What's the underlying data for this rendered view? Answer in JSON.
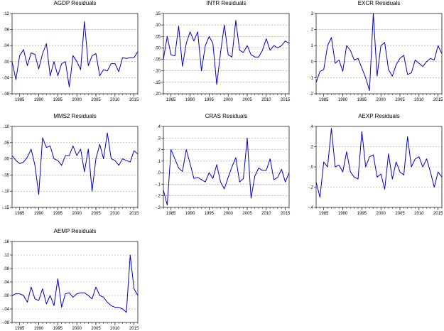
{
  "chart_data": [
    {
      "type": "line",
      "title": "AGDP Residuals",
      "x": [
        1983,
        1984,
        1985,
        1986,
        1987,
        1988,
        1989,
        1990,
        1991,
        1992,
        1993,
        1994,
        1995,
        1996,
        1997,
        1998,
        1999,
        2000,
        2001,
        2002,
        2003,
        2004,
        2005,
        2006,
        2007,
        2008,
        2009,
        2010,
        2011,
        2012,
        2013,
        2014,
        2015,
        2016
      ],
      "values": [
        0.0,
        -0.045,
        0.015,
        0.03,
        -0.01,
        0.022,
        0.018,
        -0.018,
        0.02,
        0.045,
        -0.035,
        0.0,
        -0.035,
        -0.005,
        0.0,
        -0.063,
        0.015,
        0.0,
        -0.02,
        0.1,
        -0.01,
        0.015,
        0.02,
        -0.035,
        -0.02,
        -0.023,
        -0.005,
        -0.005,
        -0.025,
        0.01,
        0.008,
        0.01,
        0.01,
        0.025
      ],
      "ylim": [
        -0.08,
        0.12
      ],
      "yticks": [
        ".12",
        ".08",
        ".04",
        ".00",
        "-.04",
        "-.08"
      ],
      "xticks": [
        "1985",
        "1990",
        "1995",
        "2000",
        "2005",
        "2010",
        "2015"
      ],
      "grid": true,
      "color": "#0000cc"
    },
    {
      "type": "line",
      "title": "INTR Residuals",
      "x": [
        1983,
        1984,
        1985,
        1986,
        1987,
        1988,
        1989,
        1990,
        1991,
        1992,
        1993,
        1994,
        1995,
        1996,
        1997,
        1998,
        1999,
        2000,
        2001,
        2002,
        2003,
        2004,
        2005,
        2006,
        2007,
        2008,
        2009,
        2010,
        2011,
        2012,
        2013,
        2014,
        2015,
        2016
      ],
      "values": [
        -0.05,
        0.05,
        -0.03,
        -0.035,
        0.095,
        -0.08,
        0.02,
        0.07,
        0.03,
        0.07,
        -0.1,
        0.01,
        0.05,
        0.02,
        -0.16,
        -0.02,
        0.1,
        -0.03,
        -0.04,
        0.12,
        -0.01,
        -0.02,
        0.01,
        -0.03,
        -0.04,
        -0.04,
        -0.01,
        0.04,
        -0.01,
        0.01,
        0.0,
        0.01,
        0.03,
        0.02
      ],
      "ylim": [
        -0.2,
        0.15
      ],
      "yticks": [
        ".15",
        ".10",
        ".05",
        ".00",
        "-.05",
        "-.10",
        "-.15",
        "-.20"
      ],
      "xticks": [
        "1985",
        "1990",
        "1995",
        "2000",
        "2005",
        "2010",
        "2015"
      ],
      "grid": true,
      "color": "#0000cc"
    },
    {
      "type": "line",
      "title": "EXCR Residuals",
      "x": [
        1983,
        1984,
        1985,
        1986,
        1987,
        1988,
        1989,
        1990,
        1991,
        1992,
        1993,
        1994,
        1995,
        1996,
        1997,
        1998,
        1999,
        2000,
        2001,
        2002,
        2003,
        2004,
        2005,
        2006,
        2007,
        2008,
        2009,
        2010,
        2011,
        2012,
        2013,
        2014,
        2015,
        2016
      ],
      "values": [
        -1.3,
        -0.6,
        -0.5,
        1.0,
        1.5,
        -0.1,
        0.1,
        -0.6,
        1.0,
        0.7,
        0.1,
        0.2,
        -0.4,
        -1.0,
        -1.8,
        3.0,
        -0.9,
        1.0,
        1.2,
        -0.5,
        -0.9,
        -0.2,
        0.2,
        0.4,
        -0.8,
        -0.7,
        0.1,
        -0.1,
        -0.3,
        0.0,
        0.2,
        0.1,
        1.0,
        0.5
      ],
      "ylim": [
        -2,
        3
      ],
      "yticks": [
        "3",
        "2",
        "1",
        "0",
        "-1",
        "-2"
      ],
      "xticks": [
        "1985",
        "1990",
        "1995",
        "2000",
        "2005",
        "2010",
        "2015"
      ],
      "grid": true,
      "color": "#0000cc"
    },
    {
      "type": "line",
      "title": "MMS2 Residuals",
      "x": [
        1983,
        1984,
        1985,
        1986,
        1987,
        1988,
        1989,
        1990,
        1991,
        1992,
        1993,
        1994,
        1995,
        1996,
        1997,
        1998,
        1999,
        2000,
        2001,
        2002,
        2003,
        2004,
        2005,
        2006,
        2007,
        2008,
        2009,
        2010,
        2011,
        2012,
        2013,
        2014,
        2015,
        2016
      ],
      "values": [
        0.01,
        -0.005,
        -0.015,
        -0.01,
        0.005,
        0.03,
        -0.02,
        -0.11,
        0.065,
        0.035,
        0.04,
        0.0,
        -0.005,
        -0.02,
        0.01,
        0.01,
        0.04,
        0.01,
        0.03,
        -0.04,
        0.03,
        -0.1,
        0.0,
        0.045,
        0.0,
        0.08,
        0.0,
        -0.005,
        -0.02,
        0.0,
        -0.005,
        -0.01,
        0.025,
        0.015
      ],
      "ylim": [
        -0.15,
        0.1
      ],
      "yticks": [
        ".10",
        ".05",
        ".00",
        "-.05",
        "-.10",
        "-.15"
      ],
      "xticks": [
        "1985",
        "1990",
        "1995",
        "2000",
        "2005",
        "2010",
        "2015"
      ],
      "grid": true,
      "color": "#0000cc"
    },
    {
      "type": "line",
      "title": "CRAS Residuals",
      "x": [
        1983,
        1984,
        1985,
        1986,
        1987,
        1988,
        1989,
        1990,
        1991,
        1992,
        1993,
        1994,
        1995,
        1996,
        1997,
        1998,
        1999,
        2000,
        2001,
        2002,
        2003,
        2004,
        2005,
        2006,
        2007,
        2008,
        2009,
        2010,
        2011,
        2012,
        2013,
        2014,
        2015,
        2016
      ],
      "values": [
        -0.15,
        -0.28,
        0.2,
        0.12,
        0.04,
        0.01,
        0.2,
        0.08,
        -0.05,
        -0.04,
        -0.06,
        -0.08,
        0.0,
        -0.05,
        0.07,
        -0.08,
        -0.14,
        -0.04,
        0.05,
        0.13,
        -0.08,
        -0.05,
        0.3,
        -0.22,
        -0.03,
        0.04,
        0.02,
        0.02,
        0.12,
        -0.06,
        -0.04,
        0.03,
        -0.08,
        0.0
      ],
      "ylim": [
        -0.3,
        0.4
      ],
      "yticks": [
        ".4",
        ".3",
        ".2",
        ".1",
        ".0",
        "-.1",
        "-.2",
        "-.3"
      ],
      "xticks": [
        "1985",
        "1990",
        "1995",
        "2000",
        "2005",
        "2010",
        "2015"
      ],
      "grid": true,
      "color": "#0000cc"
    },
    {
      "type": "line",
      "title": "AEXP Residuals",
      "x": [
        1983,
        1984,
        1985,
        1986,
        1987,
        1988,
        1989,
        1990,
        1991,
        1992,
        1993,
        1994,
        1995,
        1996,
        1997,
        1998,
        1999,
        2000,
        2001,
        2002,
        2003,
        2004,
        2005,
        2006,
        2007,
        2008,
        2009,
        2010,
        2011,
        2012,
        2013,
        2014,
        2015,
        2016
      ],
      "values": [
        -0.15,
        -0.3,
        0.05,
        0.0,
        0.38,
        0.0,
        0.02,
        -0.05,
        0.15,
        -0.05,
        -0.1,
        -0.12,
        0.35,
        0.0,
        0.1,
        0.12,
        -0.1,
        -0.07,
        -0.22,
        0.13,
        -0.12,
        0.05,
        -0.05,
        -0.08,
        0.3,
        0.0,
        0.08,
        0.1,
        0.0,
        0.08,
        -0.05,
        -0.2,
        -0.05,
        -0.1
      ],
      "ylim": [
        -0.4,
        0.4
      ],
      "yticks": [
        ".4",
        ".2",
        ".0",
        "-.2",
        "-.4"
      ],
      "xticks": [
        "1985",
        "1990",
        "1995",
        "2000",
        "2005",
        "2010",
        "2015"
      ],
      "grid": true,
      "color": "#0000cc"
    },
    {
      "type": "line",
      "title": "AEMP Residuals",
      "x": [
        1983,
        1984,
        1985,
        1986,
        1987,
        1988,
        1989,
        1990,
        1991,
        1992,
        1993,
        1994,
        1995,
        1996,
        1997,
        1998,
        1999,
        2000,
        2001,
        2002,
        2003,
        2004,
        2005,
        2006,
        2007,
        2008,
        2009,
        2010,
        2011,
        2012,
        2013,
        2014,
        2015,
        2016
      ],
      "values": [
        0.0,
        0.005,
        0.005,
        0.0,
        -0.02,
        0.025,
        -0.01,
        -0.015,
        0.02,
        -0.025,
        0.0,
        -0.03,
        0.05,
        -0.035,
        0.005,
        0.008,
        -0.005,
        0.005,
        0.008,
        0.008,
        0.0,
        -0.01,
        0.025,
        0.0,
        -0.005,
        -0.02,
        -0.03,
        -0.035,
        -0.035,
        -0.04,
        -0.05,
        0.12,
        0.02,
        0.0
      ],
      "ylim": [
        -0.08,
        0.16
      ],
      "yticks": [
        ".16",
        ".12",
        ".08",
        ".04",
        ".00",
        "-.04",
        "-.08"
      ],
      "xticks": [
        "1985",
        "1990",
        "1995",
        "2000",
        "2005",
        "2010",
        "2015"
      ],
      "grid": true,
      "color": "#0000cc"
    }
  ]
}
